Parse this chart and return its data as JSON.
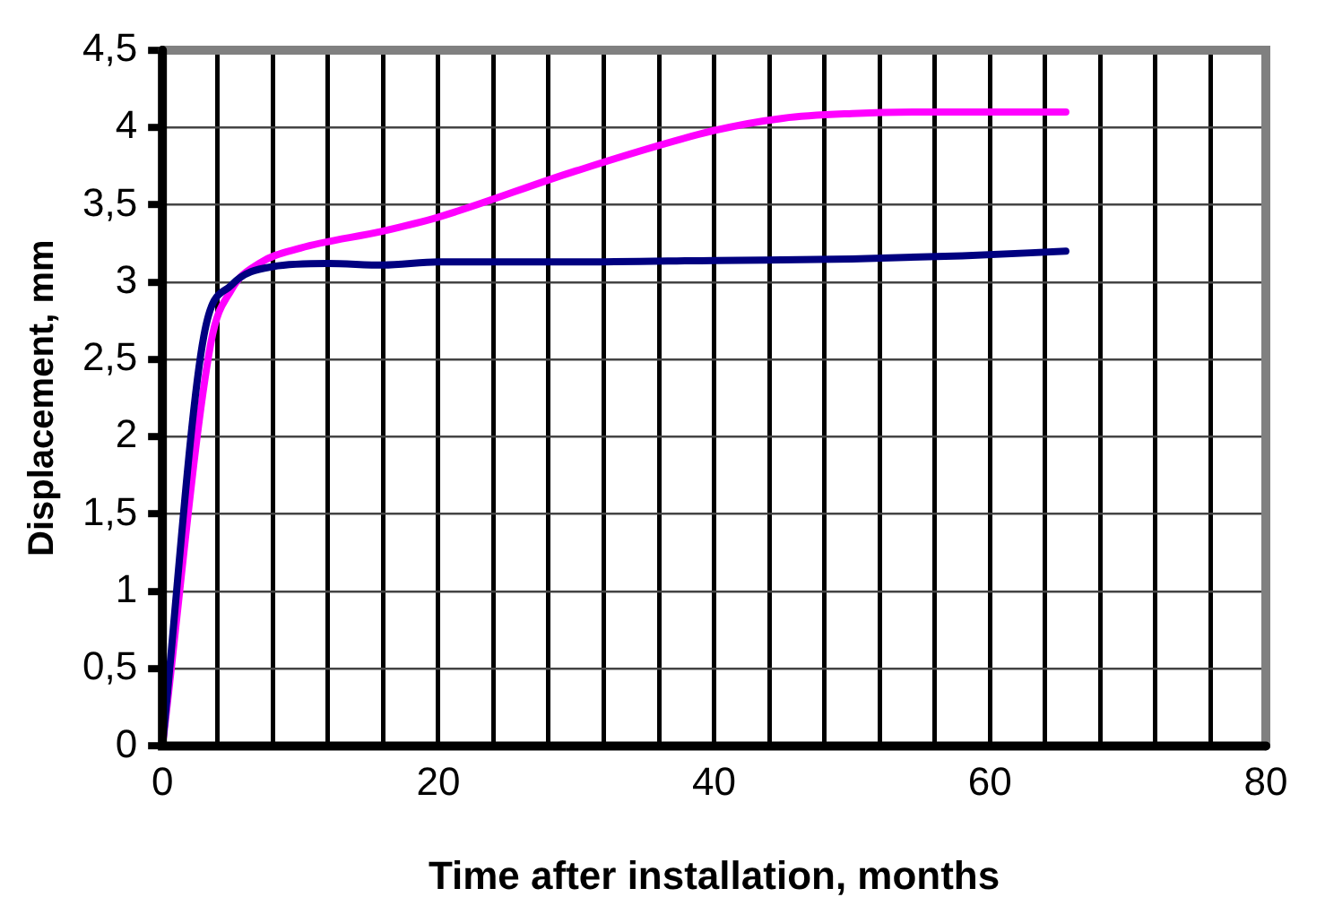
{
  "chart_data": {
    "type": "line",
    "xlabel": "Time after installation, months",
    "ylabel": "Displacement, mm",
    "xlim": [
      0,
      80
    ],
    "xticks": [
      0,
      {
        "value": 4,
        "label": null
      },
      {
        "value": 8,
        "label": null
      },
      {
        "value": 12,
        "label": null
      },
      {
        "value": 16,
        "label": null
      },
      20,
      {
        "value": 24,
        "label": null
      },
      {
        "value": 28,
        "label": null
      },
      {
        "value": 32,
        "label": null
      },
      {
        "value": 36,
        "label": null
      },
      40,
      {
        "value": 44,
        "label": null
      },
      {
        "value": 48,
        "label": null
      },
      {
        "value": 52,
        "label": null
      },
      {
        "value": 56,
        "label": null
      },
      60,
      {
        "value": 64,
        "label": null
      },
      {
        "value": 68,
        "label": null
      },
      {
        "value": 72,
        "label": null
      },
      {
        "value": 76,
        "label": null
      },
      80
    ],
    "ylim": [
      0,
      4.5
    ],
    "yticks": [
      0,
      {
        "value": 0.5,
        "label": "0,5"
      },
      1,
      {
        "value": 1.5,
        "label": "1,5"
      },
      2,
      {
        "value": 2.5,
        "label": "2,5"
      },
      3,
      {
        "value": 3.5,
        "label": "3,5"
      },
      4,
      {
        "value": 4.5,
        "label": "4,5"
      }
    ],
    "grid": true,
    "legend": false,
    "marker": "none",
    "line_style": "solid",
    "series": [
      {
        "color": "#000080",
        "x": [
          0,
          3,
          5,
          8,
          12,
          16,
          20,
          30,
          40,
          50,
          58,
          65.5
        ],
        "values": [
          0,
          2.65,
          2.98,
          3.1,
          3.12,
          3.11,
          3.13,
          3.13,
          3.14,
          3.15,
          3.17,
          3.2
        ]
      },
      {
        "color": "#ff00ff",
        "x": [
          0,
          3.5,
          5,
          7,
          10,
          16,
          20,
          30,
          40,
          45,
          50,
          55,
          65.5
        ],
        "values": [
          0,
          2.6,
          2.95,
          3.12,
          3.22,
          3.33,
          3.42,
          3.72,
          3.98,
          4.06,
          4.09,
          4.1,
          4.1
        ]
      }
    ]
  }
}
